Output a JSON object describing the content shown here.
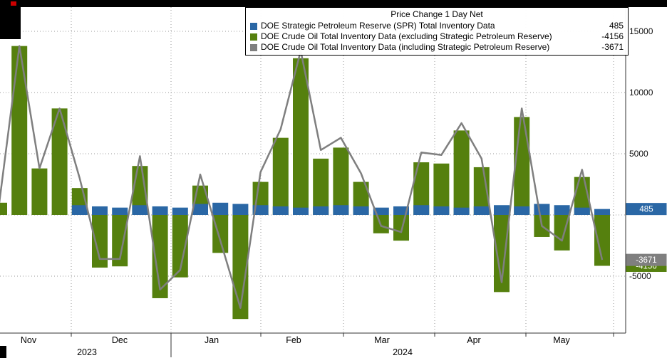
{
  "chart_data": {
    "type": "bar",
    "title": "Price Change 1 Day Net",
    "cadence": "weekly",
    "series": [
      {
        "name": "DOE Strategic Petroleum Reserve (SPR) Total Inventory Data",
        "display_value": "485",
        "color": "#2a67a5",
        "type": "bar",
        "values": [
          0,
          0,
          0,
          0,
          800,
          700,
          600,
          800,
          700,
          600,
          900,
          1000,
          900,
          800,
          700,
          600,
          700,
          800,
          700,
          600,
          700,
          800,
          700,
          600,
          700,
          800,
          700,
          900,
          800,
          600,
          485
        ]
      },
      {
        "name": "DOE Crude Oil Total Inventory Data (excluding Strategic Petroleum Reserve)",
        "display_value": "-4156",
        "color": "#55800e",
        "type": "bar",
        "values": [
          1000,
          13800,
          3800,
          8700,
          2200,
          -4300,
          -4200,
          4000,
          -6800,
          -5100,
          2400,
          -3100,
          -8500,
          2700,
          6300,
          12800,
          4600,
          5500,
          2700,
          -1500,
          -2100,
          4300,
          4200,
          6900,
          3900,
          -6300,
          8000,
          -1800,
          -2900,
          3100,
          -4156
        ]
      },
      {
        "name": "DOE Crude Oil Total Inventory Data (including Strategic Petroleum Reserve)",
        "display_value": "-3671",
        "color": "#7f7f7f",
        "type": "line",
        "derived_from": "sum of SPR and ex-SPR weekly values"
      }
    ],
    "y_axis": {
      "min": -9650,
      "max": 17000,
      "grid_values": [
        15000,
        10000,
        5000,
        0,
        -5000
      ],
      "ticks": [
        {
          "label": "15000",
          "value": 15000
        },
        {
          "label": "10000",
          "value": 10000
        },
        {
          "label": "5000",
          "value": 5000
        },
        {
          "label": "-5000",
          "value": -5000
        }
      ],
      "badges": [
        {
          "label": "-4156",
          "value": -4156,
          "series": 1
        },
        {
          "label": "-3671",
          "value": -3671,
          "series": 2
        },
        {
          "label": "485",
          "value": 485,
          "series": 0
        }
      ]
    },
    "x_axis": {
      "months": [
        "Nov",
        "Dec",
        "Jan",
        "Feb",
        "Mar",
        "Apr",
        "May"
      ],
      "years": [
        "2023",
        "2024"
      ]
    }
  }
}
